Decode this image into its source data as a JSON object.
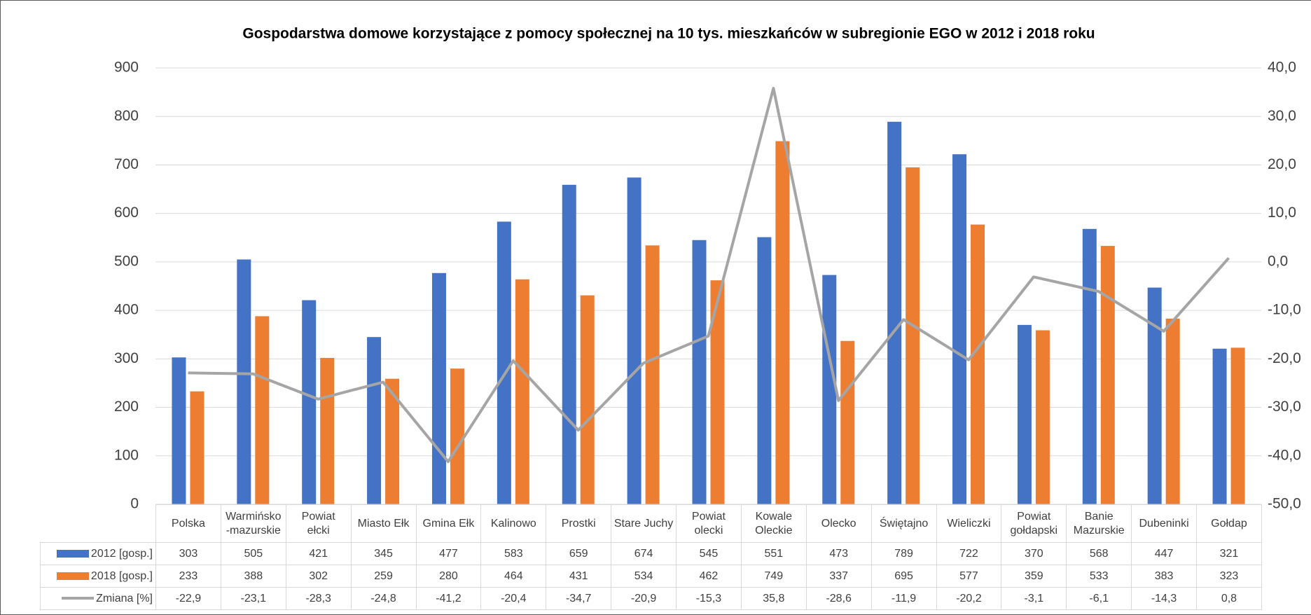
{
  "chart_data": {
    "type": "bar",
    "title": "Gospodarstwa domowe korzystające z pomocy społecznej na 10 tys. mieszkańców w subregionie EGO w 2012 i 2018 roku",
    "categories": [
      "Polska",
      "Warmińsko\n-mazurskie",
      "Powiat\nełcki",
      "Miasto Ełk",
      "Gmina Ełk",
      "Kalinowo",
      "Prostki",
      "Stare Juchy",
      "Powiat\nolecki",
      "Kowale\nOleckie",
      "Olecko",
      "Świętajno",
      "Wieliczki",
      "Powiat\ngołdapski",
      "Banie\nMazurskie",
      "Dubeninki",
      "Gołdap"
    ],
    "series": [
      {
        "name": "2012 [gosp.]",
        "type": "bar",
        "color": "#4472c4",
        "values": [
          303,
          505,
          421,
          345,
          477,
          583,
          659,
          674,
          545,
          551,
          473,
          789,
          722,
          370,
          568,
          447,
          321
        ]
      },
      {
        "name": "2018 [gosp.]",
        "type": "bar",
        "color": "#ed7d31",
        "values": [
          233,
          388,
          302,
          259,
          280,
          464,
          431,
          534,
          462,
          749,
          337,
          695,
          577,
          359,
          533,
          383,
          323
        ]
      },
      {
        "name": "Zmiana [%]",
        "type": "line",
        "axis": "y2",
        "color": "#a5a5a5",
        "values": [
          -22.9,
          -23.1,
          -28.3,
          -24.8,
          -41.2,
          -20.4,
          -34.7,
          -20.9,
          -15.3,
          35.8,
          -28.6,
          -11.9,
          -20.2,
          -3.1,
          -6.1,
          -14.3,
          0.8
        ],
        "value_labels": [
          "-22,9",
          "-23,1",
          "-28,3",
          "-24,8",
          "-41,2",
          "-20,4",
          "-34,7",
          "-20,9",
          "-15,3",
          "35,8",
          "-28,6",
          "-11,9",
          "-20,2",
          "-3,1",
          "-6,1",
          "-14,3",
          "0,8"
        ]
      }
    ],
    "ylim": [
      0,
      900
    ],
    "yticks": [
      0,
      100,
      200,
      300,
      400,
      500,
      600,
      700,
      800,
      900
    ],
    "y2lim": [
      -50,
      40
    ],
    "y2ticks": [
      {
        "value": -50,
        "label": "-50,0"
      },
      {
        "value": -40,
        "label": "-40,0"
      },
      {
        "value": -30,
        "label": "-30,0"
      },
      {
        "value": -20,
        "label": "-20,0"
      },
      {
        "value": -10,
        "label": "-10,0"
      },
      {
        "value": 0,
        "label": "0,0"
      },
      {
        "value": 10,
        "label": "10,0"
      },
      {
        "value": 20,
        "label": "20,0"
      },
      {
        "value": 30,
        "label": "30,0"
      },
      {
        "value": 40,
        "label": "40,0"
      }
    ],
    "grid": true
  }
}
